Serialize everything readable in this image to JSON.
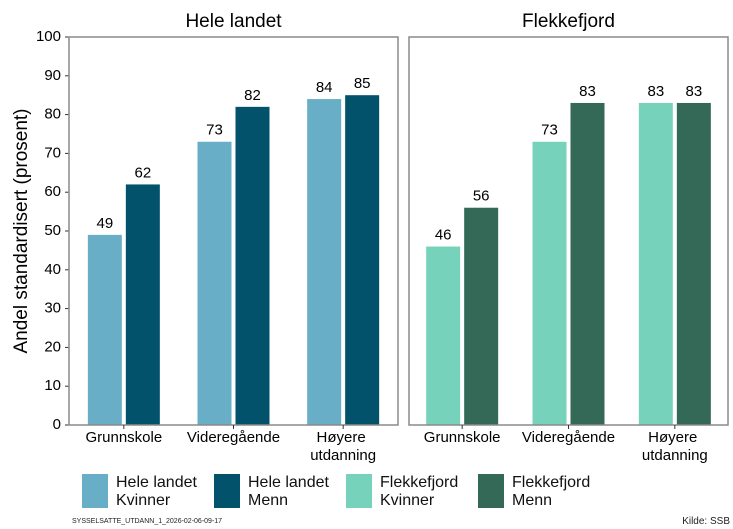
{
  "y_label": "Andel standardisert (prosent)",
  "footer": "SYSSELSATTE_UTDANN_1_2026-02-06-09-17",
  "source": "Kilde: SSB",
  "chart_data": [
    {
      "type": "bar",
      "title": "Hele landet",
      "categories": [
        "Grunnskole",
        "Videregående",
        "Høyere utdanning"
      ],
      "series": [
        {
          "name": "Hele landet Kvinner",
          "color": "#67aec6",
          "values": [
            49,
            73,
            84
          ]
        },
        {
          "name": "Hele landet Menn",
          "color": "#03526b",
          "values": [
            62,
            82,
            85
          ]
        }
      ],
      "ylim": [
        0,
        100
      ],
      "yticks": [
        0,
        10,
        20,
        30,
        40,
        50,
        60,
        70,
        80,
        90,
        100
      ]
    },
    {
      "type": "bar",
      "title": "Flekkefjord",
      "categories": [
        "Grunnskole",
        "Videregående",
        "Høyere utdanning"
      ],
      "series": [
        {
          "name": "Flekkefjord Kvinner",
          "color": "#77d2bc",
          "values": [
            46,
            73,
            83
          ]
        },
        {
          "name": "Flekkefjord Menn",
          "color": "#356957",
          "values": [
            56,
            83,
            83
          ]
        }
      ],
      "ylim": [
        0,
        100
      ]
    }
  ]
}
